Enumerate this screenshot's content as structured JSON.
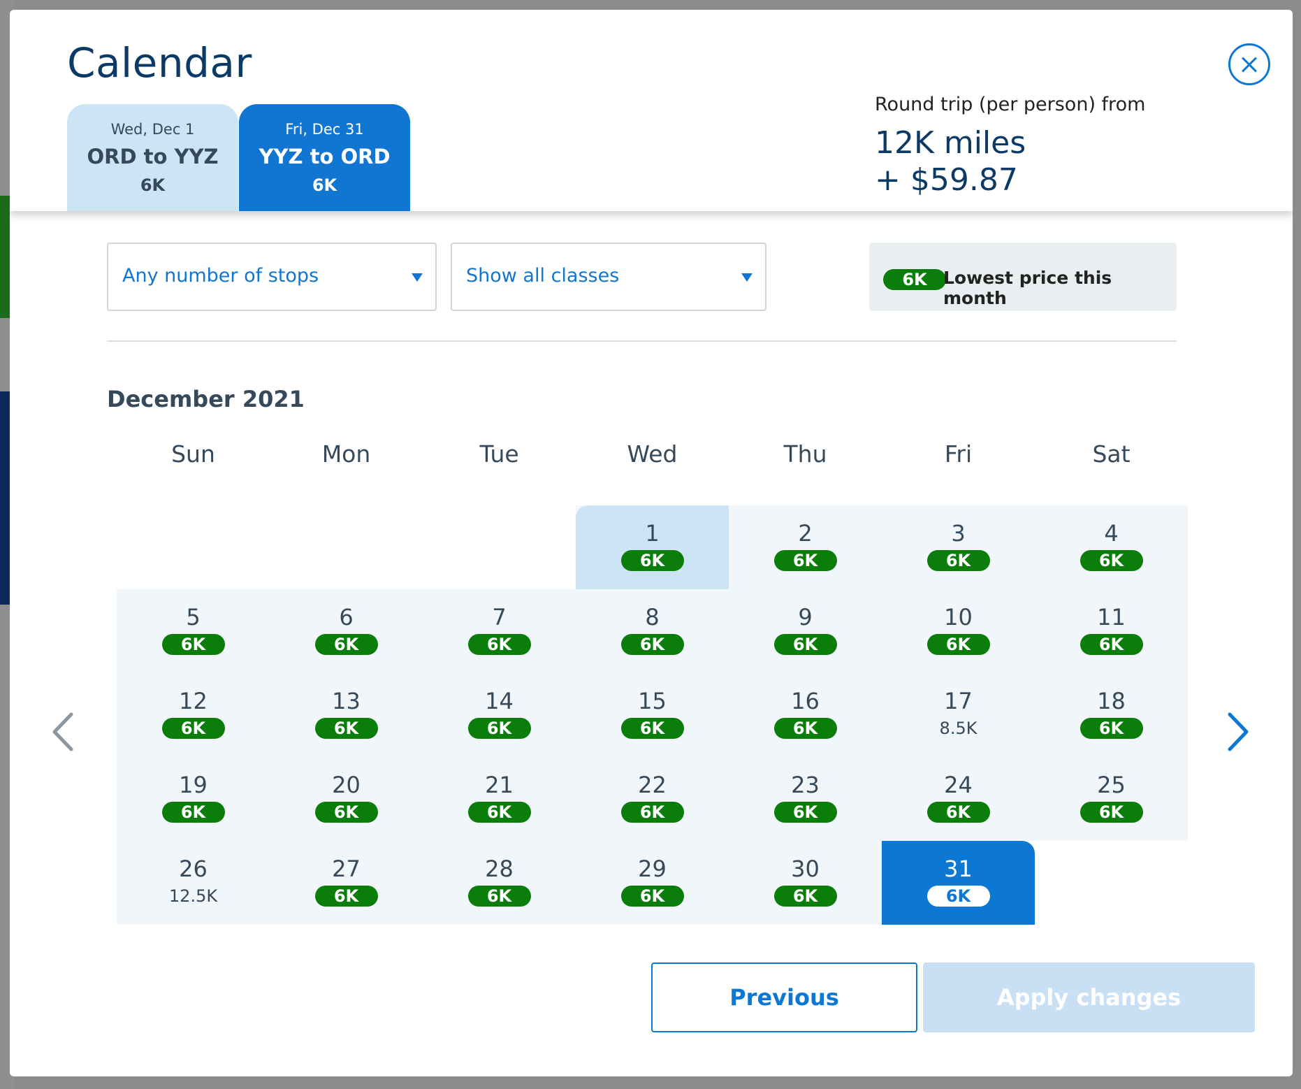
{
  "modal": {
    "title": "Calendar"
  },
  "trips": [
    {
      "date": "Wed, Dec 1",
      "route": "ORD to YYZ",
      "miles": "6K"
    },
    {
      "date": "Fri, Dec 31",
      "route": "YYZ to ORD",
      "miles": "6K"
    }
  ],
  "summary": {
    "label": "Round trip (per person) from",
    "miles": "12K miles",
    "cash": "+ $59.87"
  },
  "filters": {
    "stops": "Any number of stops",
    "classes": "Show all classes"
  },
  "legend": {
    "pill": "6K",
    "text": "Lowest price this month"
  },
  "calendar": {
    "month": "December 2021",
    "weekdays": [
      "Sun",
      "Mon",
      "Tue",
      "Wed",
      "Thu",
      "Fri",
      "Sat"
    ],
    "days": [
      {
        "day": "1",
        "price": "6K",
        "lowest": true,
        "state": "selected-outbound"
      },
      {
        "day": "2",
        "price": "6K",
        "lowest": true
      },
      {
        "day": "3",
        "price": "6K",
        "lowest": true
      },
      {
        "day": "4",
        "price": "6K",
        "lowest": true
      },
      {
        "day": "5",
        "price": "6K",
        "lowest": true
      },
      {
        "day": "6",
        "price": "6K",
        "lowest": true
      },
      {
        "day": "7",
        "price": "6K",
        "lowest": true
      },
      {
        "day": "8",
        "price": "6K",
        "lowest": true
      },
      {
        "day": "9",
        "price": "6K",
        "lowest": true
      },
      {
        "day": "10",
        "price": "6K",
        "lowest": true
      },
      {
        "day": "11",
        "price": "6K",
        "lowest": true
      },
      {
        "day": "12",
        "price": "6K",
        "lowest": true
      },
      {
        "day": "13",
        "price": "6K",
        "lowest": true
      },
      {
        "day": "14",
        "price": "6K",
        "lowest": true
      },
      {
        "day": "15",
        "price": "6K",
        "lowest": true
      },
      {
        "day": "16",
        "price": "6K",
        "lowest": true
      },
      {
        "day": "17",
        "price": "8.5K",
        "lowest": false
      },
      {
        "day": "18",
        "price": "6K",
        "lowest": true
      },
      {
        "day": "19",
        "price": "6K",
        "lowest": true
      },
      {
        "day": "20",
        "price": "6K",
        "lowest": true
      },
      {
        "day": "21",
        "price": "6K",
        "lowest": true
      },
      {
        "day": "22",
        "price": "6K",
        "lowest": true
      },
      {
        "day": "23",
        "price": "6K",
        "lowest": true
      },
      {
        "day": "24",
        "price": "6K",
        "lowest": true
      },
      {
        "day": "25",
        "price": "6K",
        "lowest": true
      },
      {
        "day": "26",
        "price": "12.5K",
        "lowest": false
      },
      {
        "day": "27",
        "price": "6K",
        "lowest": true
      },
      {
        "day": "28",
        "price": "6K",
        "lowest": true
      },
      {
        "day": "29",
        "price": "6K",
        "lowest": true
      },
      {
        "day": "30",
        "price": "6K",
        "lowest": true
      },
      {
        "day": "31",
        "price": "6K",
        "lowest": true,
        "state": "selected-return"
      }
    ]
  },
  "buttons": {
    "previous": "Previous",
    "apply": "Apply changes"
  },
  "icons": {
    "close": "close-circle-icon",
    "prev_month": "chevron-left-icon",
    "next_month": "chevron-right-icon",
    "dropdown": "caret-down-icon"
  },
  "colors": {
    "brand_blue": "#0c78d4",
    "selected_light": "#cde4f5",
    "lowest_green": "#0a7d0a",
    "title_navy": "#0b3a66"
  }
}
